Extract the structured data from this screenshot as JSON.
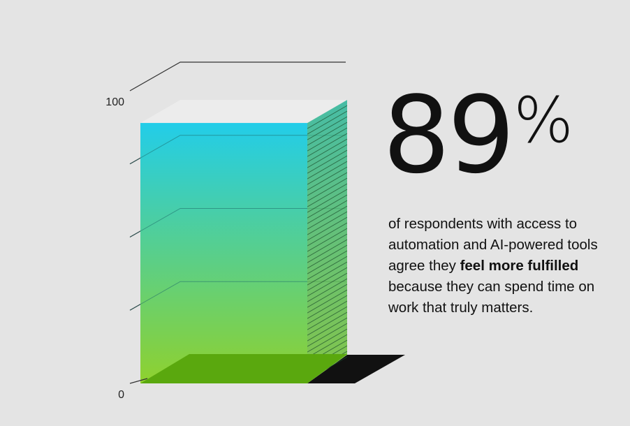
{
  "chart_data": {
    "type": "bar",
    "categories": [
      ""
    ],
    "values": [
      89
    ],
    "ylim": [
      0,
      100
    ],
    "yticks": [
      {
        "value": 0,
        "label": "0"
      },
      {
        "value": 100,
        "label": "100"
      }
    ],
    "gridlines": [
      25,
      50,
      75,
      100
    ],
    "grid": true,
    "style": "3d-column",
    "colors": {
      "top": "#22cde9",
      "bottom": "#8fd12e",
      "side": "#5ab85a",
      "floor": "#5aa80e",
      "shadow": "#111111",
      "cap": "#ececec"
    }
  },
  "stat": {
    "number": "89",
    "unit": "%"
  },
  "caption": {
    "part1": "of respondents with access to automation and AI-powered tools agree they ",
    "bold": "feel more fulfilled",
    "part2": " because they can spend time on work that truly matters."
  }
}
